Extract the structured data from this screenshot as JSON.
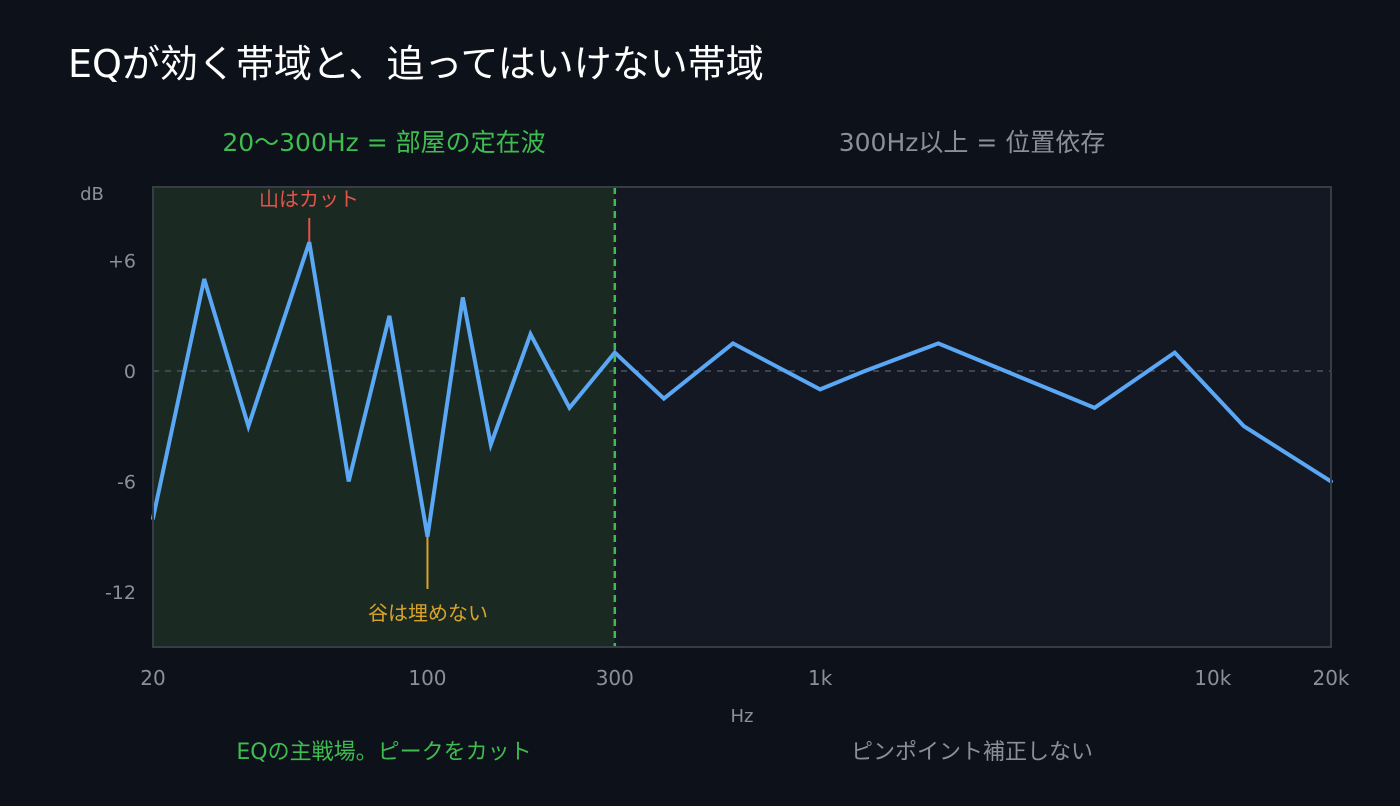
{
  "title": "EQが効く帯域と、追ってはいけない帯域",
  "colors": {
    "background": "#0d111a",
    "plot_bg": "#131822",
    "region_bg": "#1a2a22",
    "line": "#5aa7f5",
    "green": "#3fbc4f",
    "gray": "#8a9099",
    "red": "#e5534b",
    "orange": "#d9a32a",
    "frame": "#373d47"
  },
  "region_headers": {
    "low": "20〜300Hz = 部屋の定在波",
    "high": "300Hz以上 = 位置依存"
  },
  "footers": {
    "low": "EQの主戦場。ピークをカット",
    "high": "ピンポイント補正しない"
  },
  "annotations": {
    "peak": "山はカット",
    "dip": "谷は埋めない"
  },
  "chart_data": {
    "type": "line",
    "xlabel": "Hz",
    "ylabel": "dB",
    "x_scale": "log",
    "xlim": [
      20,
      20000
    ],
    "ylim": [
      -15,
      10
    ],
    "x_ticks": [
      {
        "value": 20,
        "label": "20"
      },
      {
        "value": 100,
        "label": "100"
      },
      {
        "value": 300,
        "label": "300"
      },
      {
        "value": 1000,
        "label": "1k"
      },
      {
        "value": 10000,
        "label": "10k"
      },
      {
        "value": 20000,
        "label": "20k"
      }
    ],
    "y_ticks": [
      {
        "value": 6,
        "label": "+6"
      },
      {
        "value": 0,
        "label": "0"
      },
      {
        "value": -6,
        "label": "-6"
      },
      {
        "value": -12,
        "label": "-12"
      }
    ],
    "zero_line": 0,
    "region_split_hz": 300,
    "series": [
      {
        "x": [
          20,
          27,
          35,
          50,
          63,
          80,
          100,
          123,
          145,
          183,
          230,
          300,
          400,
          600,
          1000,
          1300,
          2000,
          5000,
          8000,
          12000,
          20000
        ],
        "y": [
          -8,
          5,
          -3,
          7,
          -6,
          3,
          -9,
          4,
          -4,
          2,
          -2,
          1,
          -1.5,
          1.5,
          -1,
          0,
          1.5,
          -2,
          1,
          -3,
          -6
        ]
      }
    ],
    "peak_marker": {
      "x": 50,
      "y": 7
    },
    "dip_marker": {
      "x": 100,
      "y": -9
    }
  }
}
